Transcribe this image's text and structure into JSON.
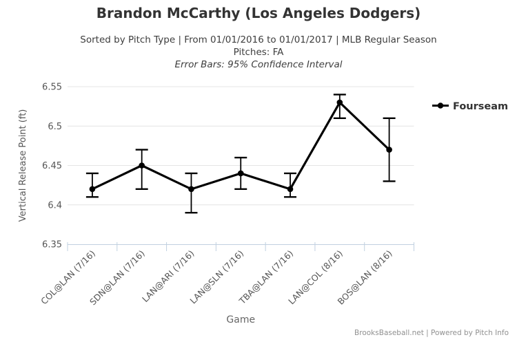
{
  "header": {
    "title": "Brandon McCarthy (Los Angeles Dodgers)",
    "subtitle_line1": "Sorted by Pitch Type | From 01/01/2016 to 01/01/2017 | MLB Regular Season",
    "subtitle_line2": "Pitches: FA",
    "subtitle_line3": "Error Bars: 95% Confidence Interval"
  },
  "chart_data": {
    "type": "line",
    "title": "Brandon McCarthy (Los Angeles Dodgers)",
    "categories": [
      "COL@LAN (7/16)",
      "SDN@LAN (7/16)",
      "LAN@ARI (7/16)",
      "LAN@SLN (7/16)",
      "TBA@LAN (7/16)",
      "LAN@COL (8/16)",
      "BOS@LAN (8/16)"
    ],
    "series": [
      {
        "name": "Fourseam",
        "values": [
          6.42,
          6.45,
          6.42,
          6.44,
          6.42,
          6.53,
          6.47
        ],
        "error_low": [
          6.41,
          6.42,
          6.39,
          6.42,
          6.41,
          6.51,
          6.43
        ],
        "error_high": [
          6.44,
          6.47,
          6.44,
          6.46,
          6.44,
          6.54,
          6.51
        ],
        "color": "#000000"
      }
    ],
    "xlabel": "Game",
    "ylabel": "Vertical Release Point (ft)",
    "ylim": [
      6.35,
      6.55
    ],
    "yticks": [
      "6.35",
      "6.4",
      "6.45",
      "6.5",
      "6.55"
    ],
    "grid": true,
    "legend_position": "right-top",
    "error_bars_note": "95% Confidence Interval"
  },
  "footer": {
    "credit": "BrooksBaseball.net | Powered by Pitch Info"
  },
  "colors": {
    "series": "#000000",
    "grid_line": "#e4e4e4",
    "axis_line": "#c0d0e0",
    "title_text": "#333333",
    "subtitle_text": "#3d3d3d",
    "tick_text": "#555555",
    "axis_title_text": "#666666",
    "legend_text": "#333333",
    "footer_text": "#909090",
    "background": "#ffffff"
  }
}
